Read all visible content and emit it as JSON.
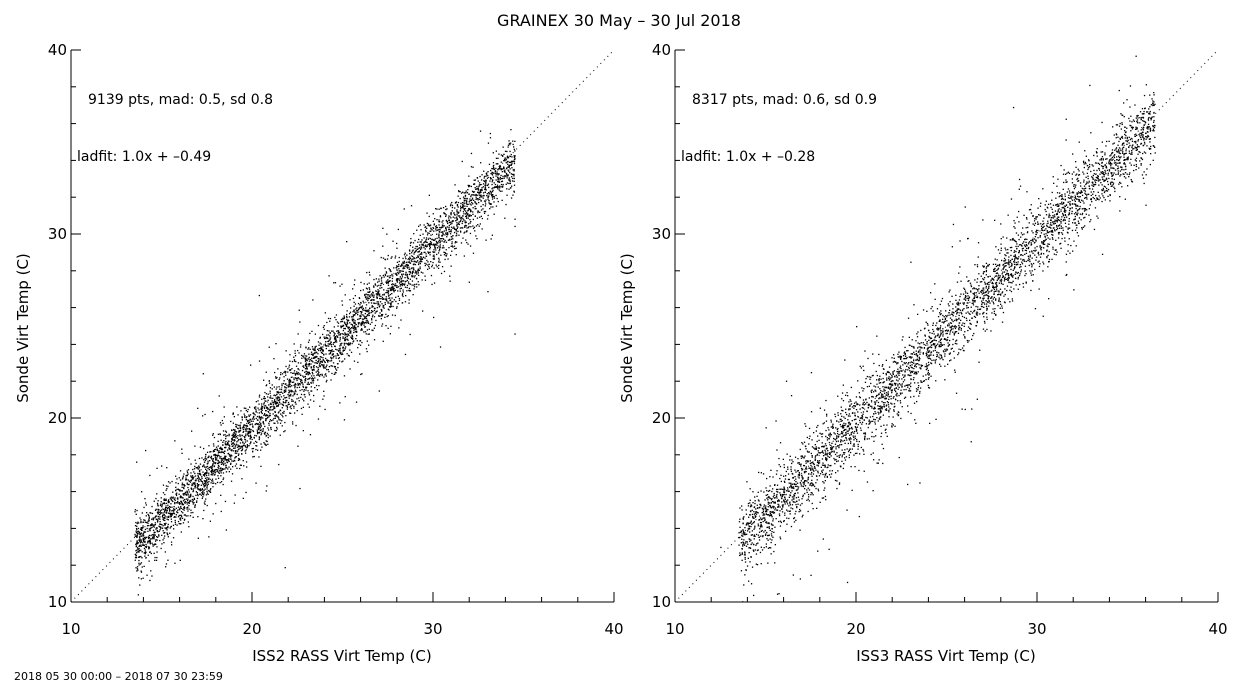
{
  "figure": {
    "title": "GRAINEX 30 May – 30 Jul 2018",
    "footer": "2018 05 30 00:00 – 2018 07 30 23:59"
  },
  "chart_data": [
    {
      "type": "scatter",
      "xlabel": "ISS2 RASS Virt Temp (C)",
      "ylabel": "Sonde Virt Temp (C)",
      "xlim": [
        10,
        40
      ],
      "ylim": [
        10,
        40
      ],
      "xticks": [
        "10",
        "20",
        "30",
        "40"
      ],
      "yticks": [
        "10",
        "20",
        "30",
        "40"
      ],
      "stats_label": "9139 pts, mad: 0.5, sd 0.8",
      "fit_label": "ladfit: 1.0x + –0.49",
      "n_points": 9139,
      "mad": 0.5,
      "sd": 0.8,
      "fit": {
        "slope": 1.0,
        "intercept": -0.49
      },
      "reference_line": {
        "x": [
          10,
          40
        ],
        "y": [
          10,
          40
        ],
        "style": "dotted"
      },
      "approx_points": {
        "x": [
          13.5,
          14.5,
          15.5,
          16.5,
          17.5,
          18.5,
          19.5,
          20.5,
          21.5,
          22.5,
          23.5,
          24.5,
          25.5,
          26.5,
          27.5,
          28.5,
          29.5,
          30.5,
          31.5,
          32.5,
          33.5,
          16,
          17,
          18.5,
          20,
          21,
          22.5,
          24,
          27,
          30,
          33,
          34.5,
          21.8
        ],
        "y": [
          13.7,
          14.6,
          15.6,
          16.6,
          17.4,
          18.6,
          19.6,
          20.5,
          21.6,
          22.4,
          23.6,
          24.5,
          25.4,
          26.6,
          27.4,
          28.5,
          29.6,
          30.4,
          31.5,
          32.3,
          33.4,
          12.3,
          13.5,
          15.5,
          18.2,
          19.5,
          18.5,
          20.5,
          21.5,
          25.5,
          26.9,
          24.6,
          11.9
        ]
      }
    },
    {
      "type": "scatter",
      "xlabel": "ISS3 RASS Virt Temp (C)",
      "ylabel": "Sonde Virt Temp (C)",
      "xlim": [
        10,
        40
      ],
      "ylim": [
        10,
        40
      ],
      "xticks": [
        "10",
        "20",
        "30",
        "40"
      ],
      "yticks": [
        "10",
        "20",
        "30",
        "40"
      ],
      "stats_label": "8317 pts, mad: 0.6, sd 0.9",
      "fit_label": "ladfit: 1.0x + –0.28",
      "n_points": 8317,
      "mad": 0.6,
      "sd": 0.9,
      "fit": {
        "slope": 1.0,
        "intercept": -0.28
      },
      "reference_line": {
        "x": [
          10,
          40
        ],
        "y": [
          10,
          40
        ],
        "style": "dotted"
      },
      "approx_points": {
        "x": [
          12.5,
          13.5,
          14.5,
          15.5,
          16.5,
          17.5,
          18.5,
          19.5,
          20.5,
          21.5,
          22.5,
          23.5,
          24.5,
          25.5,
          26.5,
          27.5,
          28.5,
          29.5,
          30.5,
          31.5,
          32.5,
          33.5,
          34.5,
          35.5,
          15,
          17.5,
          20,
          23,
          26,
          29,
          32,
          16.5,
          19.5,
          23.5,
          26
        ],
        "y": [
          13.0,
          13.8,
          14.9,
          15.7,
          16.8,
          17.6,
          18.7,
          19.6,
          20.8,
          21.5,
          22.6,
          23.5,
          24.6,
          25.4,
          26.6,
          27.4,
          28.5,
          29.5,
          30.5,
          31.4,
          32.5,
          33.4,
          34.5,
          35.8,
          19.5,
          22.5,
          25,
          28.5,
          31.5,
          33,
          27,
          11.5,
          11.1,
          16.5,
          20.5
        ]
      }
    }
  ]
}
